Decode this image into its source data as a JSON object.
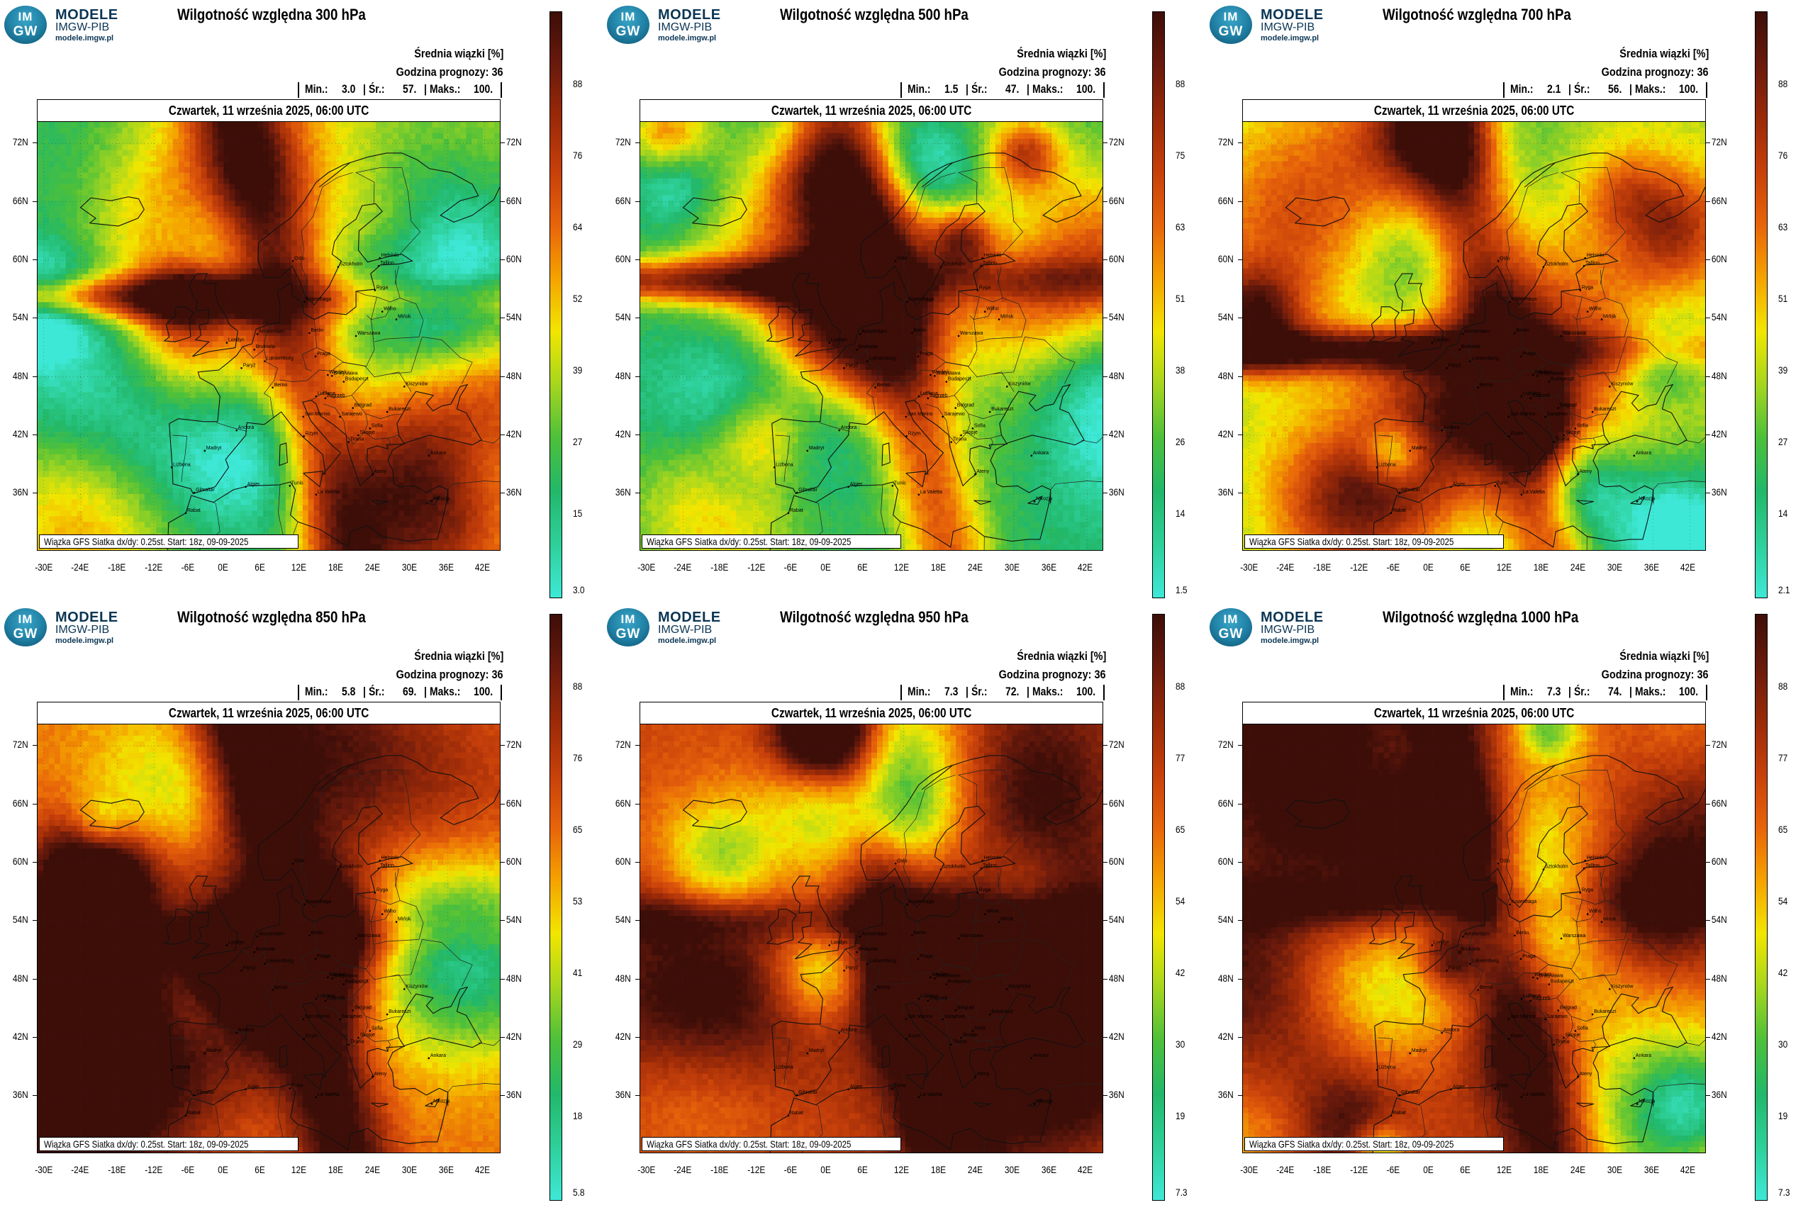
{
  "logo": {
    "badge_top": "IM",
    "badge_bottom": "GW",
    "line1": "MODELE",
    "line2": "IMGW-PIB",
    "line3": "modele.imgw.pl"
  },
  "common": {
    "subtitle": "Średnia wiązki [%]",
    "forecast_hour": "Godzina prognozy: 36",
    "date": "Czwartek, 11 września 2025, 06:00 UTC",
    "source": "Wiązka GFS Siatka dx/dy: 0.25st. Start: 18z, 09-09-2025",
    "min_label": "Min.:",
    "avg_label": "Śr.:",
    "max_label": "Maks.:",
    "lat_labels": [
      "72N",
      "66N",
      "60N",
      "54N",
      "48N",
      "42N",
      "36N"
    ],
    "lon_labels": [
      "-30E",
      "-24E",
      "-18E",
      "-12E",
      "-6E",
      "0E",
      "6E",
      "12E",
      "18E",
      "24E",
      "30E",
      "36E",
      "42E"
    ]
  },
  "cities": [
    "Helsinki",
    "Oslo",
    "Sztokholm",
    "Tallinn",
    "Ryga",
    "Wilno",
    "Kopenhaga",
    "Mińsk",
    "Berlin",
    "Amsterdam",
    "Londyn",
    "Bruksela",
    "Luksemburg",
    "Warszawa",
    "Praga",
    "Paryż",
    "Wiedeń",
    "Bratysława",
    "Budapeszt",
    "Kiszyniów",
    "Berno",
    "Lublana",
    "Zagrzeb",
    "Bukareszt",
    "San Marino",
    "Belgrad",
    "Sarajewo",
    "Sofia",
    "Skopje",
    "Andora",
    "Rzym",
    "Tirana",
    "Madryt",
    "Lizbona",
    "Ankara",
    "Ateny",
    "Gibraltar",
    "Algier",
    "Tunis",
    "Rabat",
    "La Valetta",
    "Nikozja"
  ],
  "panels": [
    {
      "title": "Wilgotność względna 300 hPa",
      "min": "3.0",
      "avg": "57.",
      "max": "100.",
      "cbar_ticks": [
        "88",
        "76",
        "64",
        "52",
        "39",
        "27",
        "15",
        "3.0"
      ],
      "seed": 1,
      "moist": 0.35
    },
    {
      "title": "Wilgotność względna 500 hPa",
      "min": "1.5",
      "avg": "47.",
      "max": "100.",
      "cbar_ticks": [
        "88",
        "75",
        "63",
        "51",
        "38",
        "26",
        "14",
        "1.5"
      ],
      "seed": 2,
      "moist": 0.2
    },
    {
      "title": "Wilgotność względna 700 hPa",
      "min": "2.1",
      "avg": "56.",
      "max": "100.",
      "cbar_ticks": [
        "88",
        "76",
        "63",
        "51",
        "39",
        "27",
        "14",
        "2.1"
      ],
      "seed": 3,
      "moist": 0.35
    },
    {
      "title": "Wilgotność względna 850 hPa",
      "min": "5.8",
      "avg": "69.",
      "max": "100.",
      "cbar_ticks": [
        "88",
        "76",
        "65",
        "53",
        "41",
        "29",
        "18",
        "5.8"
      ],
      "seed": 4,
      "moist": 0.62
    },
    {
      "title": "Wilgotność względna 950 hPa",
      "min": "7.3",
      "avg": "72.",
      "max": "100.",
      "cbar_ticks": [
        "88",
        "77",
        "65",
        "54",
        "42",
        "30",
        "19",
        "7.3"
      ],
      "seed": 5,
      "moist": 0.7
    },
    {
      "title": "Wilgotność względna 1000 hPa",
      "min": "7.3",
      "avg": "74.",
      "max": "100.",
      "cbar_ticks": [
        "88",
        "77",
        "65",
        "54",
        "42",
        "30",
        "19",
        "7.3"
      ],
      "seed": 6,
      "moist": 0.75
    }
  ],
  "colors": {
    "colormap": [
      "#3ee8d6",
      "#2ed09a",
      "#22b86a",
      "#4dc03a",
      "#a6d61e",
      "#f2e600",
      "#f5a300",
      "#e8640a",
      "#c7400a",
      "#9a2a08",
      "#6a1a0c",
      "#3d0e08"
    ]
  }
}
